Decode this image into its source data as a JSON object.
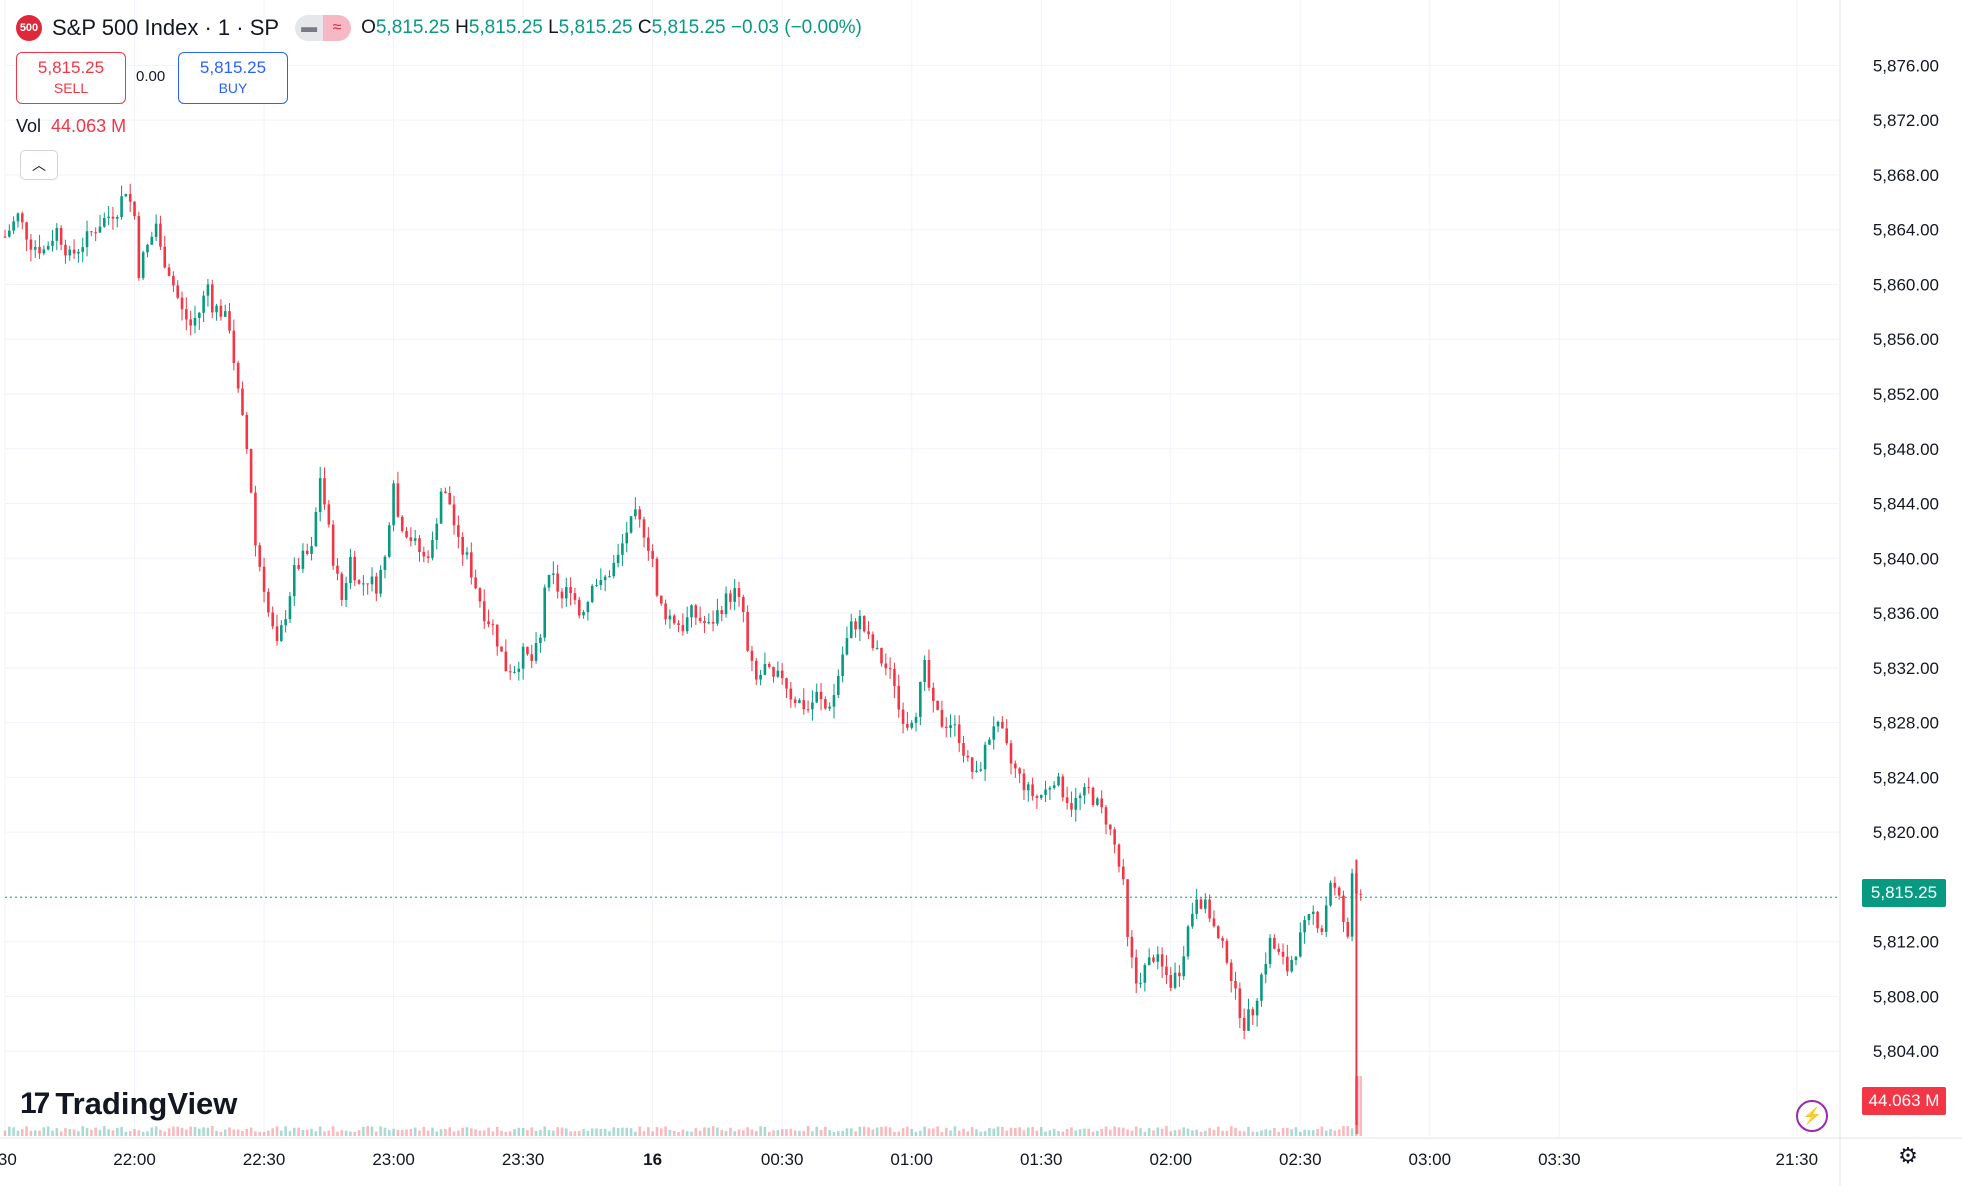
{
  "header": {
    "symbol_badge": "500",
    "symbol_title": "S&P 500 Index · 1 · SP",
    "ohlc": {
      "o_label": "O",
      "o": "5,815.25",
      "h_label": "H",
      "h": "5,815.25",
      "l_label": "L",
      "l": "5,815.25",
      "c_label": "C",
      "c": "5,815.25",
      "change": "−0.03 (−0.00%)"
    }
  },
  "trade": {
    "sell_price": "5,815.25",
    "sell_label": "SELL",
    "spread": "0.00",
    "buy_price": "5,815.25",
    "buy_label": "BUY"
  },
  "volume": {
    "label": "Vol",
    "value": "44.063 M"
  },
  "branding": {
    "logo_mark": "17",
    "logo_text": "TradingView"
  },
  "tags": {
    "last_price": "5,815.25",
    "volume": "44.063 M"
  },
  "colors": {
    "up": "#089981",
    "down": "#f23645",
    "grid": "#f0f3fa",
    "axis_text": "#131722"
  },
  "icons": {
    "collapse": "chevron-up-icon",
    "go_to_realtime": "lightning-icon",
    "settings": "settings-icon"
  },
  "chart_data": {
    "type": "candlestick",
    "yticks": [
      "5,876.00",
      "5,872.00",
      "5,868.00",
      "5,864.00",
      "5,860.00",
      "5,856.00",
      "5,852.00",
      "5,848.00",
      "5,844.00",
      "5,840.00",
      "5,836.00",
      "5,832.00",
      "5,828.00",
      "5,824.00",
      "5,820.00",
      "5,812.00",
      "5,808.00",
      "5,804.00"
    ],
    "ytick_values": [
      5876,
      5872,
      5868,
      5864,
      5860,
      5856,
      5852,
      5848,
      5844,
      5840,
      5836,
      5832,
      5828,
      5824,
      5820,
      5812,
      5808,
      5804
    ],
    "ylim": [
      5800,
      5878
    ],
    "xticks": [
      ":30",
      "22:00",
      "22:30",
      "23:00",
      "23:30",
      "16",
      "00:30",
      "01:00",
      "01:30",
      "02:00",
      "02:30",
      "03:00",
      "03:30",
      "21:30"
    ],
    "x_range_minutes": [
      -30,
      395
    ],
    "xtick_minutes": [
      -30,
      0,
      30,
      60,
      90,
      120,
      150,
      180,
      210,
      240,
      270,
      300,
      330,
      385
    ],
    "last_price": 5815.25,
    "grid": true,
    "close_path": [
      [
        -30,
        5863.5
      ],
      [
        -27,
        5865
      ],
      [
        -24,
        5863
      ],
      [
        -21,
        5862.5
      ],
      [
        -18,
        5864
      ],
      [
        -15,
        5862
      ],
      [
        -12,
        5863
      ],
      [
        -8,
        5864.5
      ],
      [
        -4,
        5865.5
      ],
      [
        -2,
        5867
      ],
      [
        0,
        5865
      ],
      [
        1,
        5861
      ],
      [
        2,
        5862
      ],
      [
        4,
        5863.5
      ],
      [
        5,
        5864.5
      ],
      [
        6,
        5862.5
      ],
      [
        8,
        5861
      ],
      [
        9,
        5860
      ],
      [
        11,
        5858
      ],
      [
        13,
        5857
      ],
      [
        15,
        5858
      ],
      [
        17,
        5860
      ],
      [
        18,
        5858.5
      ],
      [
        20,
        5858
      ],
      [
        22,
        5857
      ],
      [
        24,
        5852
      ],
      [
        26,
        5848
      ],
      [
        27,
        5845
      ],
      [
        28,
        5841
      ],
      [
        30,
        5838
      ],
      [
        31,
        5836
      ],
      [
        33,
        5833.5
      ],
      [
        35,
        5836
      ],
      [
        37,
        5839
      ],
      [
        39,
        5840
      ],
      [
        41,
        5840.5
      ],
      [
        43,
        5846
      ],
      [
        44,
        5844
      ],
      [
        46,
        5840
      ],
      [
        48,
        5837
      ],
      [
        50,
        5840
      ],
      [
        52,
        5838
      ],
      [
        54,
        5838.5
      ],
      [
        56,
        5838
      ],
      [
        58,
        5840
      ],
      [
        60,
        5846
      ],
      [
        61,
        5843
      ],
      [
        63,
        5842
      ],
      [
        65,
        5841
      ],
      [
        67,
        5840
      ],
      [
        69,
        5841
      ],
      [
        71,
        5845
      ],
      [
        73,
        5844
      ],
      [
        75,
        5841
      ],
      [
        77,
        5840
      ],
      [
        79,
        5838
      ],
      [
        81,
        5836
      ],
      [
        83,
        5835
      ],
      [
        85,
        5833
      ],
      [
        86,
        5832
      ],
      [
        88,
        5832
      ],
      [
        90,
        5833
      ],
      [
        92,
        5832.5
      ],
      [
        94,
        5834
      ],
      [
        95,
        5838
      ],
      [
        97,
        5838.5
      ],
      [
        99,
        5837
      ],
      [
        101,
        5838
      ],
      [
        103,
        5836
      ],
      [
        105,
        5837
      ],
      [
        106,
        5838.5
      ],
      [
        108,
        5838
      ],
      [
        110,
        5839
      ],
      [
        112,
        5840
      ],
      [
        114,
        5842
      ],
      [
        116,
        5843
      ],
      [
        118,
        5842
      ],
      [
        120,
        5840
      ],
      [
        121,
        5837
      ],
      [
        123,
        5836
      ],
      [
        125,
        5835.5
      ],
      [
        127,
        5835
      ],
      [
        129,
        5836
      ],
      [
        131,
        5835.5
      ],
      [
        133,
        5835
      ],
      [
        135,
        5836
      ],
      [
        137,
        5837
      ],
      [
        139,
        5837.5
      ],
      [
        141,
        5836
      ],
      [
        142,
        5833
      ],
      [
        144,
        5831
      ],
      [
        146,
        5832
      ],
      [
        148,
        5831
      ],
      [
        150,
        5831.5
      ],
      [
        152,
        5830
      ],
      [
        154,
        5829.5
      ],
      [
        156,
        5829
      ],
      [
        158,
        5830
      ],
      [
        160,
        5829
      ],
      [
        162,
        5830
      ],
      [
        164,
        5833
      ],
      [
        166,
        5835
      ],
      [
        168,
        5835.5
      ],
      [
        170,
        5834
      ],
      [
        172,
        5833
      ],
      [
        174,
        5832
      ],
      [
        176,
        5831
      ],
      [
        177,
        5829
      ],
      [
        179,
        5828
      ],
      [
        181,
        5829
      ],
      [
        183,
        5832
      ],
      [
        185,
        5829
      ],
      [
        187,
        5828
      ],
      [
        189,
        5828
      ],
      [
        191,
        5827
      ],
      [
        193,
        5825
      ],
      [
        195,
        5824
      ],
      [
        197,
        5826
      ],
      [
        199,
        5828
      ],
      [
        201,
        5827
      ],
      [
        203,
        5825
      ],
      [
        205,
        5824
      ],
      [
        207,
        5823
      ],
      [
        209,
        5822.5
      ],
      [
        211,
        5823
      ],
      [
        213,
        5824
      ],
      [
        215,
        5823
      ],
      [
        217,
        5822
      ],
      [
        219,
        5822.5
      ],
      [
        221,
        5823
      ],
      [
        223,
        5822
      ],
      [
        225,
        5821
      ],
      [
        227,
        5819
      ],
      [
        229,
        5816
      ],
      [
        230,
        5812
      ],
      [
        232,
        5809
      ],
      [
        234,
        5810
      ],
      [
        236,
        5811
      ],
      [
        238,
        5810
      ],
      [
        240,
        5809
      ],
      [
        242,
        5810
      ],
      [
        244,
        5813
      ],
      [
        246,
        5815.5
      ],
      [
        247,
        5815
      ],
      [
        249,
        5814
      ],
      [
        251,
        5812
      ],
      [
        253,
        5811
      ],
      [
        255,
        5808
      ],
      [
        257,
        5806
      ],
      [
        259,
        5807
      ],
      [
        261,
        5809.5
      ],
      [
        263,
        5812
      ],
      [
        265,
        5811
      ],
      [
        267,
        5810
      ],
      [
        269,
        5811.5
      ],
      [
        271,
        5813
      ],
      [
        273,
        5814
      ],
      [
        275,
        5813
      ],
      [
        277,
        5816.5
      ],
      [
        279,
        5815
      ],
      [
        281,
        5812
      ],
      [
        282,
        5817
      ],
      [
        283,
        5816
      ],
      [
        284,
        5815.25
      ]
    ],
    "x_scale_note": "tick labels as printed",
    "volume_spike": 44.063
  }
}
